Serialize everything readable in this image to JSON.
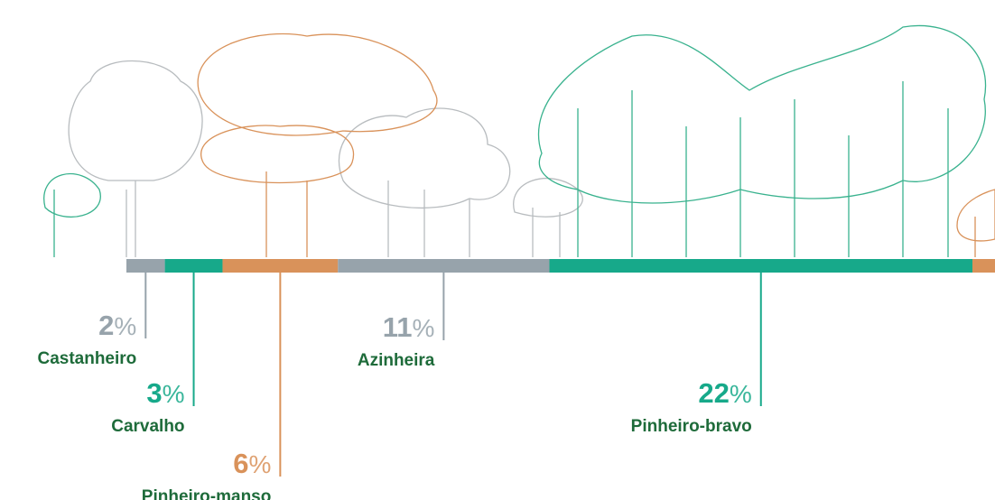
{
  "chart_data": {
    "type": "segmented-bar",
    "unit": "%",
    "segments": [
      {
        "name": "Castanheiro",
        "value": 2,
        "color": "#97a3ab"
      },
      {
        "name": "Carvalho",
        "value": 3,
        "color": "#17a98a"
      },
      {
        "name": "Pinheiro-manso",
        "value": 6,
        "color": "#d9925a"
      },
      {
        "name": "Azinheira",
        "value": 11,
        "color": "#97a3ab"
      },
      {
        "name": "Pinheiro-bravo",
        "value": 22,
        "color": "#17a98a"
      }
    ]
  }
}
